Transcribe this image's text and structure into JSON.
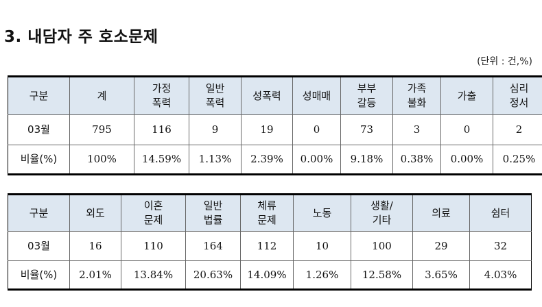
{
  "title": "3. 내담자 주 호소문제",
  "unit": "(단위 : 건,%)",
  "table1": {
    "headers": [
      [
        "구분"
      ],
      [
        "계"
      ],
      [
        "가정",
        "폭력"
      ],
      [
        "일반",
        "폭력"
      ],
      [
        "성폭력"
      ],
      [
        "성매매"
      ],
      [
        "부부",
        "갈등"
      ],
      [
        "가족",
        "불화"
      ],
      [
        "가출"
      ],
      [
        "심리",
        "정서"
      ]
    ],
    "rows": [
      {
        "label": "03월",
        "values": [
          "795",
          "116",
          "9",
          "19",
          "0",
          "73",
          "3",
          "0",
          "2"
        ]
      },
      {
        "label": "비율(%)",
        "values": [
          "100%",
          "14.59%",
          "1.13%",
          "2.39%",
          "0.00%",
          "9.18%",
          "0.38%",
          "0.00%",
          "0.25%"
        ]
      }
    ]
  },
  "table2": {
    "headers": [
      [
        "구분"
      ],
      [
        "외도"
      ],
      [
        "이혼",
        "문제"
      ],
      [
        "일반",
        "법률"
      ],
      [
        "체류",
        "문제"
      ],
      [
        "노동"
      ],
      [
        "생활/",
        "기타"
      ],
      [
        "의료"
      ],
      [
        "쉼터"
      ]
    ],
    "rows": [
      {
        "label": "03월",
        "values": [
          "16",
          "110",
          "164",
          "112",
          "10",
          "100",
          "29",
          "32"
        ]
      },
      {
        "label": "비율(%)",
        "values": [
          "2.01%",
          "13.84%",
          "20.63%",
          "14.09%",
          "1.26%",
          "12.58%",
          "3.65%",
          "4.03%"
        ]
      }
    ]
  }
}
